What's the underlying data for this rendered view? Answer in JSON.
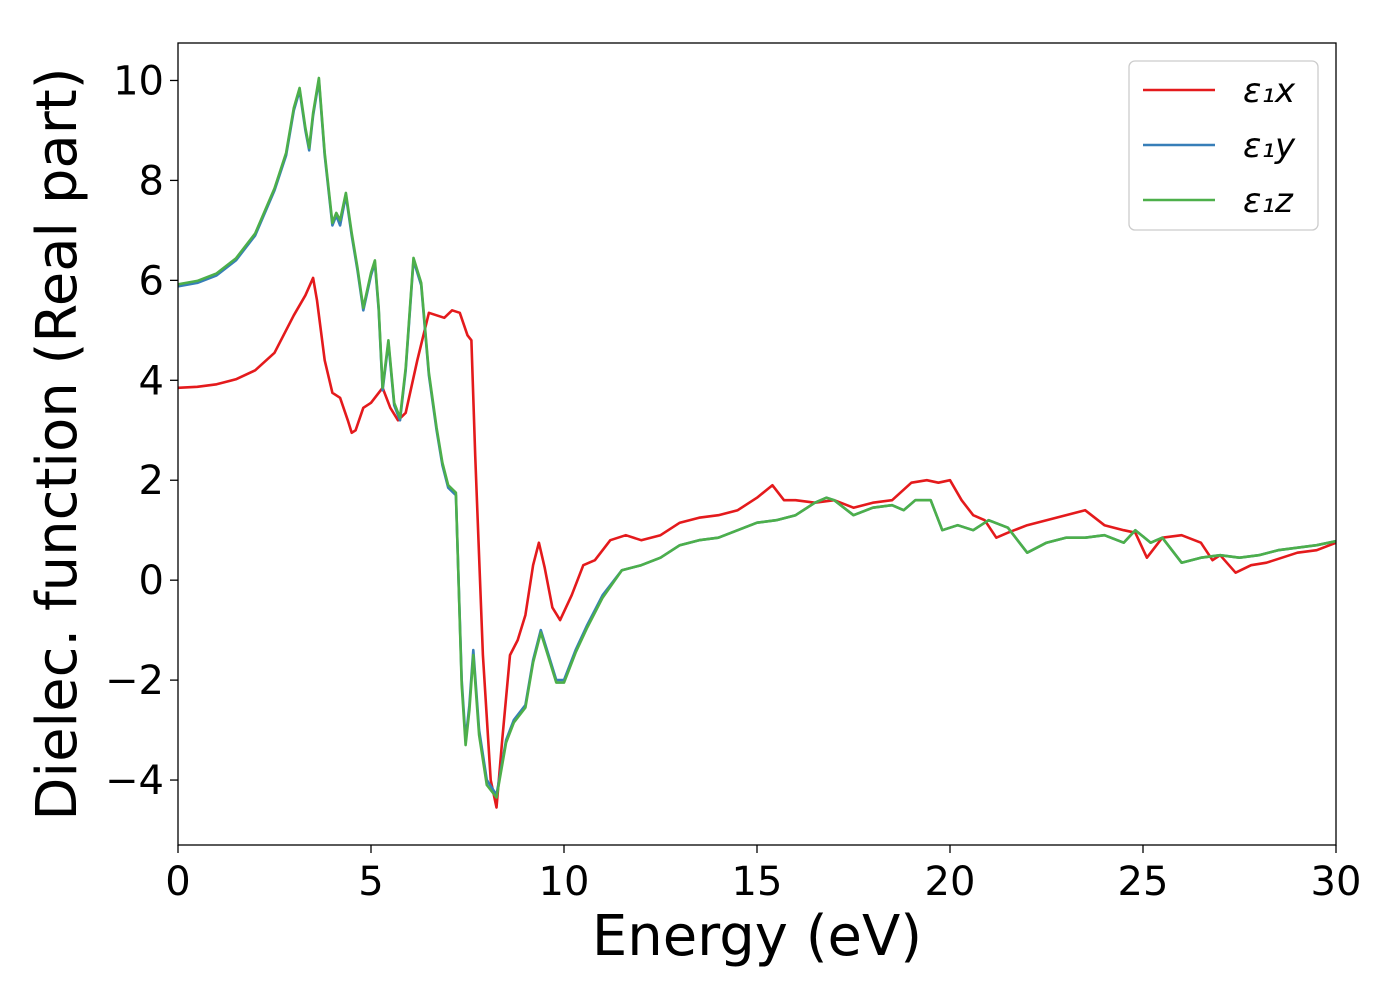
{
  "chart_data": {
    "type": "line",
    "xlabel": "Energy (eV)",
    "ylabel": "Dielec. function (Real part)",
    "xlim": [
      0,
      30
    ],
    "ylim": [
      -5.3,
      10.75
    ],
    "xticks": [
      0,
      5,
      10,
      15,
      20,
      25,
      30
    ],
    "yticks": [
      -4,
      -2,
      0,
      2,
      4,
      6,
      8,
      10
    ],
    "xtick_labels": [
      "0",
      "5",
      "10",
      "15",
      "20",
      "25",
      "30"
    ],
    "ytick_labels": [
      "−4",
      "−2",
      "0",
      "2",
      "4",
      "6",
      "8",
      "10"
    ],
    "grid": false,
    "legend_position": "top-right",
    "series": [
      {
        "name": "ε₁x",
        "color": "#e41a1c",
        "x": [
          0,
          0.5,
          1,
          1.5,
          2,
          2.5,
          3,
          3.3,
          3.5,
          3.6,
          3.8,
          4.0,
          4.2,
          4.4,
          4.5,
          4.6,
          4.8,
          5.0,
          5.3,
          5.5,
          5.7,
          5.9,
          6.2,
          6.5,
          6.7,
          6.9,
          7.1,
          7.3,
          7.5,
          7.6,
          7.7,
          7.9,
          8.1,
          8.25,
          8.4,
          8.6,
          8.8,
          9.0,
          9.2,
          9.35,
          9.5,
          9.7,
          9.9,
          10.2,
          10.5,
          10.8,
          11.2,
          11.6,
          12.0,
          12.5,
          13.0,
          13.5,
          14.0,
          14.5,
          15.0,
          15.4,
          15.7,
          16.0,
          16.5,
          17.0,
          17.5,
          18.0,
          18.5,
          19.0,
          19.4,
          19.7,
          20.0,
          20.3,
          20.6,
          20.9,
          21.2,
          21.5,
          22.0,
          22.5,
          23.0,
          23.5,
          24.0,
          24.5,
          24.8,
          25.1,
          25.5,
          26.0,
          26.5,
          26.8,
          27.0,
          27.4,
          27.8,
          28.2,
          28.6,
          29.0,
          29.5,
          30
        ],
        "y": [
          3.85,
          3.87,
          3.92,
          4.02,
          4.2,
          4.55,
          5.3,
          5.7,
          6.05,
          5.6,
          4.4,
          3.75,
          3.65,
          3.2,
          2.95,
          3.0,
          3.45,
          3.55,
          3.85,
          3.45,
          3.2,
          3.35,
          4.4,
          5.35,
          5.3,
          5.25,
          5.4,
          5.35,
          4.9,
          4.8,
          2.5,
          -1.5,
          -4.0,
          -4.55,
          -3.2,
          -1.5,
          -1.2,
          -0.7,
          0.3,
          0.75,
          0.25,
          -0.55,
          -0.8,
          -0.3,
          0.3,
          0.4,
          0.8,
          0.9,
          0.8,
          0.9,
          1.15,
          1.25,
          1.3,
          1.4,
          1.65,
          1.9,
          1.6,
          1.6,
          1.55,
          1.6,
          1.45,
          1.55,
          1.6,
          1.95,
          2.0,
          1.95,
          2.0,
          1.6,
          1.3,
          1.2,
          0.85,
          0.95,
          1.1,
          1.2,
          1.3,
          1.4,
          1.1,
          1.0,
          0.95,
          0.45,
          0.85,
          0.9,
          0.75,
          0.4,
          0.5,
          0.15,
          0.3,
          0.35,
          0.45,
          0.55,
          0.6,
          0.75
        ]
      },
      {
        "name": "ε₁y",
        "color": "#377eb8",
        "x": [
          0,
          0.5,
          1,
          1.5,
          2,
          2.5,
          2.8,
          3.0,
          3.15,
          3.3,
          3.4,
          3.5,
          3.65,
          3.8,
          4.0,
          4.1,
          4.2,
          4.35,
          4.5,
          4.65,
          4.8,
          5.0,
          5.1,
          5.2,
          5.3,
          5.45,
          5.6,
          5.75,
          5.9,
          6.1,
          6.3,
          6.5,
          6.7,
          6.85,
          7.0,
          7.2,
          7.35,
          7.45,
          7.55,
          7.65,
          7.8,
          8.0,
          8.25,
          8.5,
          8.7,
          9.0,
          9.2,
          9.4,
          9.6,
          9.8,
          10.0,
          10.3,
          10.6,
          11.0,
          11.5,
          12.0,
          12.5,
          13.0,
          13.5,
          14.0,
          14.5,
          15.0,
          15.5,
          16.0,
          16.5,
          16.8,
          17.0,
          17.5,
          18.0,
          18.5,
          18.8,
          19.1,
          19.5,
          19.8,
          20.2,
          20.6,
          21.0,
          21.5,
          22.0,
          22.5,
          23.0,
          23.5,
          24.0,
          24.5,
          24.8,
          25.2,
          25.5,
          26.0,
          26.5,
          27.0,
          27.5,
          28.0,
          28.5,
          29.0,
          29.5,
          30
        ],
        "y": [
          5.88,
          5.95,
          6.1,
          6.4,
          6.9,
          7.8,
          8.5,
          9.4,
          9.8,
          9.0,
          8.6,
          9.3,
          10.0,
          8.5,
          7.1,
          7.3,
          7.1,
          7.7,
          6.9,
          6.2,
          5.4,
          6.1,
          6.35,
          5.4,
          3.8,
          4.75,
          3.5,
          3.2,
          4.2,
          6.4,
          5.9,
          4.1,
          3.0,
          2.3,
          1.85,
          1.7,
          -2.0,
          -3.2,
          -2.5,
          -1.4,
          -3.0,
          -4.0,
          -4.3,
          -3.2,
          -2.8,
          -2.5,
          -1.6,
          -1.0,
          -1.5,
          -2.0,
          -2.0,
          -1.4,
          -0.9,
          -0.3,
          0.2,
          0.3,
          0.45,
          0.7,
          0.8,
          0.85,
          1.0,
          1.15,
          1.2,
          1.3,
          1.55,
          1.65,
          1.6,
          1.3,
          1.45,
          1.5,
          1.4,
          1.6,
          1.6,
          1.0,
          1.1,
          1.0,
          1.2,
          1.05,
          0.55,
          0.75,
          0.85,
          0.85,
          0.9,
          0.75,
          1.0,
          0.75,
          0.85,
          0.35,
          0.45,
          0.5,
          0.45,
          0.5,
          0.6,
          0.65,
          0.7,
          0.78
        ]
      },
      {
        "name": "ε₁z",
        "color": "#4daf4a",
        "x": [
          0,
          0.5,
          1,
          1.5,
          2,
          2.5,
          2.8,
          3.0,
          3.15,
          3.3,
          3.4,
          3.5,
          3.65,
          3.8,
          4.0,
          4.1,
          4.2,
          4.35,
          4.5,
          4.65,
          4.8,
          5.0,
          5.1,
          5.2,
          5.3,
          5.45,
          5.6,
          5.75,
          5.9,
          6.1,
          6.3,
          6.5,
          6.7,
          6.85,
          7.0,
          7.2,
          7.35,
          7.45,
          7.55,
          7.65,
          7.8,
          8.0,
          8.25,
          8.5,
          8.7,
          9.0,
          9.2,
          9.4,
          9.6,
          9.8,
          10.0,
          10.3,
          10.6,
          11.0,
          11.5,
          12.0,
          12.5,
          13.0,
          13.5,
          14.0,
          14.5,
          15.0,
          15.5,
          16.0,
          16.5,
          16.8,
          17.0,
          17.5,
          18.0,
          18.5,
          18.8,
          19.1,
          19.5,
          19.8,
          20.2,
          20.6,
          21.0,
          21.5,
          22.0,
          22.5,
          23.0,
          23.5,
          24.0,
          24.5,
          24.8,
          25.2,
          25.5,
          26.0,
          26.5,
          27.0,
          27.5,
          28.0,
          28.5,
          29.0,
          29.5,
          30
        ],
        "y": [
          5.92,
          5.99,
          6.14,
          6.44,
          6.94,
          7.84,
          8.55,
          9.45,
          9.85,
          9.05,
          8.65,
          9.35,
          10.05,
          8.55,
          7.15,
          7.35,
          7.2,
          7.75,
          6.95,
          6.25,
          5.45,
          6.15,
          6.4,
          5.45,
          3.85,
          4.8,
          3.55,
          3.25,
          4.25,
          6.45,
          5.95,
          4.15,
          3.05,
          2.35,
          1.9,
          1.75,
          -2.1,
          -3.3,
          -2.6,
          -1.5,
          -3.1,
          -4.1,
          -4.35,
          -3.25,
          -2.85,
          -2.55,
          -1.65,
          -1.05,
          -1.55,
          -2.05,
          -2.05,
          -1.45,
          -0.95,
          -0.35,
          0.2,
          0.3,
          0.45,
          0.7,
          0.8,
          0.85,
          1.0,
          1.15,
          1.2,
          1.3,
          1.55,
          1.65,
          1.6,
          1.3,
          1.45,
          1.5,
          1.4,
          1.6,
          1.6,
          1.0,
          1.1,
          1.0,
          1.2,
          1.05,
          0.55,
          0.75,
          0.85,
          0.85,
          0.9,
          0.75,
          1.0,
          0.75,
          0.85,
          0.35,
          0.45,
          0.5,
          0.45,
          0.5,
          0.6,
          0.65,
          0.7,
          0.78
        ]
      }
    ]
  }
}
